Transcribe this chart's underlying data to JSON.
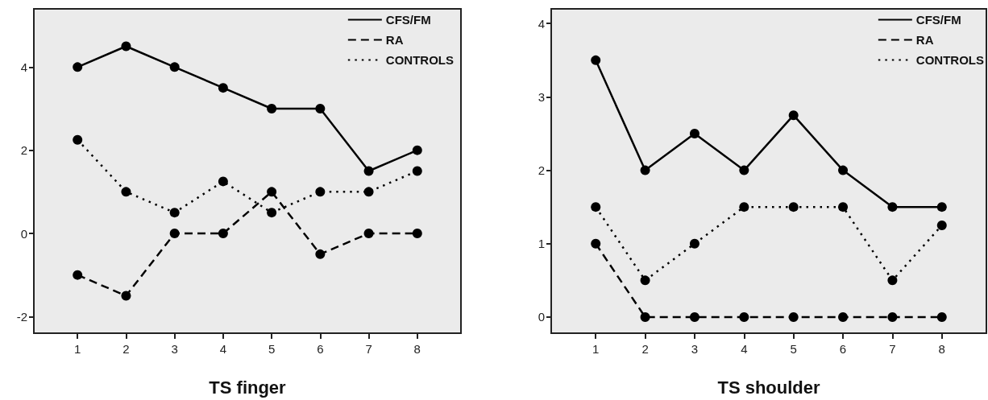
{
  "chart_data": [
    {
      "type": "line",
      "xlabel": "TS finger",
      "x": [
        1,
        2,
        3,
        4,
        5,
        6,
        7,
        8
      ],
      "xlim": [
        0.1,
        8.9
      ],
      "xticks": [
        1,
        2,
        3,
        4,
        5,
        6,
        7,
        8
      ],
      "ylim": [
        -2.4,
        5.4
      ],
      "yticks": [
        -2,
        0,
        2,
        4
      ],
      "marker": "circle",
      "legend": "top right",
      "grid": false,
      "series": [
        {
          "name": "CFS/FM",
          "color": "#000000",
          "line_style": "solid",
          "values": [
            4,
            4.5,
            4,
            3.5,
            3,
            3,
            1.5,
            2
          ]
        },
        {
          "name": "RA",
          "color": "#000000",
          "line_style": "dashed",
          "values": [
            -1,
            -1.5,
            0,
            0,
            1,
            -0.5,
            0,
            0
          ]
        },
        {
          "name": "CONTROLS",
          "color": "#000000",
          "line_style": "dotted",
          "values": [
            2.25,
            1,
            0.5,
            1.25,
            0.5,
            1,
            1,
            1.5
          ]
        }
      ]
    },
    {
      "type": "line",
      "xlabel": "TS shoulder",
      "x": [
        1,
        2,
        3,
        4,
        5,
        6,
        7,
        8
      ],
      "xlim": [
        0.1,
        8.9
      ],
      "xticks": [
        1,
        2,
        3,
        4,
        5,
        6,
        7,
        8
      ],
      "ylim": [
        -0.22,
        4.2
      ],
      "yticks": [
        0,
        1,
        2,
        3,
        4
      ],
      "marker": "circle",
      "legend": "top right",
      "grid": false,
      "series": [
        {
          "name": "CFS/FM",
          "color": "#000000",
          "line_style": "solid",
          "values": [
            3.5,
            2,
            2.5,
            2,
            2.75,
            2,
            1.5,
            1.5
          ]
        },
        {
          "name": "RA",
          "color": "#000000",
          "line_style": "dashed",
          "values": [
            1,
            0,
            0,
            0,
            0,
            0,
            0,
            0
          ]
        },
        {
          "name": "CONTROLS",
          "color": "#000000",
          "line_style": "dotted",
          "values": [
            1.5,
            0.5,
            1,
            1.5,
            1.5,
            1.5,
            0.5,
            1.25
          ]
        }
      ]
    }
  ]
}
